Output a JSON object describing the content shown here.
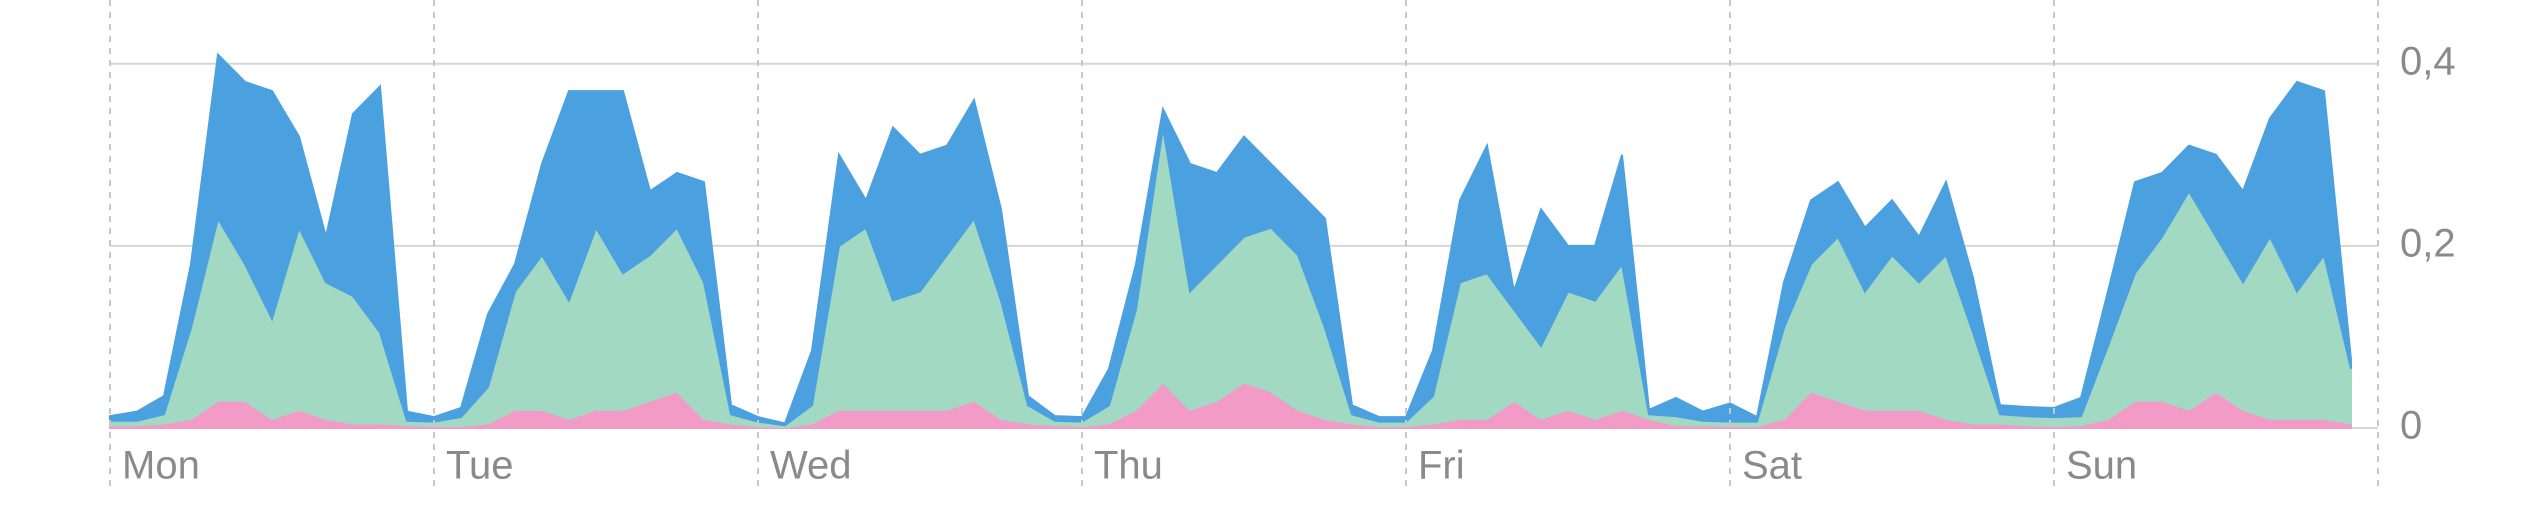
{
  "chart_data": {
    "type": "stacked-area",
    "x": [
      0,
      2,
      4,
      6,
      8,
      10,
      12,
      14,
      16,
      18,
      20,
      22,
      24,
      26,
      28,
      30,
      32,
      34,
      36,
      38,
      40,
      42,
      44,
      46,
      48,
      50,
      52,
      54,
      56,
      58,
      60,
      62,
      64,
      66,
      68,
      70,
      72,
      74,
      76,
      78,
      80,
      82,
      84,
      86,
      88,
      90,
      92,
      94,
      96,
      98,
      100,
      102,
      104,
      106,
      108,
      110,
      112,
      114,
      116,
      118,
      120,
      122,
      124,
      126,
      128,
      130,
      132,
      134,
      136,
      138,
      140,
      142,
      144,
      146,
      148,
      150,
      152,
      154,
      156,
      158,
      160,
      162,
      164,
      166
    ],
    "xlim": [
      0,
      168
    ],
    "xticks": [
      {
        "value": 0,
        "label": "Mon"
      },
      {
        "value": 24,
        "label": "Tue"
      },
      {
        "value": 48,
        "label": "Wed"
      },
      {
        "value": 72,
        "label": "Thu"
      },
      {
        "value": 96,
        "label": "Fri"
      },
      {
        "value": 120,
        "label": "Sat"
      },
      {
        "value": 144,
        "label": "Sun"
      }
    ],
    "ylim": [
      0,
      0.47
    ],
    "yticks": [
      0,
      {
        "value": 0.2,
        "label": "0,2"
      },
      {
        "value": 0.4,
        "label": "0,4"
      }
    ],
    "grid": true,
    "series": [
      {
        "color": "#f29bc7",
        "values": [
          0.003,
          0.003,
          0.005,
          0.01,
          0.03,
          0.03,
          0.01,
          0.02,
          0.01,
          0.005,
          0.005,
          0.003,
          0.002,
          0.002,
          0.005,
          0.02,
          0.02,
          0.01,
          0.02,
          0.02,
          0.03,
          0.04,
          0.01,
          0.005,
          0.002,
          0.001,
          0.005,
          0.02,
          0.02,
          0.02,
          0.02,
          0.02,
          0.03,
          0.01,
          0.005,
          0.003,
          0.002,
          0.005,
          0.02,
          0.05,
          0.02,
          0.03,
          0.05,
          0.04,
          0.02,
          0.01,
          0.005,
          0.002,
          0.002,
          0.005,
          0.01,
          0.01,
          0.03,
          0.01,
          0.02,
          0.01,
          0.02,
          0.01,
          0.003,
          0.003,
          0.002,
          0.002,
          0.01,
          0.04,
          0.03,
          0.02,
          0.02,
          0.02,
          0.01,
          0.005,
          0.005,
          0.003,
          0.002,
          0.003,
          0.01,
          0.03,
          0.03,
          0.02,
          0.04,
          0.02,
          0.01,
          0.01,
          0.01,
          0.005
        ]
      },
      {
        "color": "#a2d9c2",
        "values": [
          0.005,
          0.005,
          0.01,
          0.1,
          0.2,
          0.15,
          0.11,
          0.2,
          0.15,
          0.14,
          0.1,
          0.005,
          0.005,
          0.01,
          0.04,
          0.13,
          0.17,
          0.13,
          0.2,
          0.15,
          0.16,
          0.18,
          0.15,
          0.01,
          0.005,
          0.002,
          0.02,
          0.18,
          0.2,
          0.12,
          0.13,
          0.17,
          0.2,
          0.13,
          0.02,
          0.005,
          0.005,
          0.02,
          0.11,
          0.28,
          0.13,
          0.15,
          0.16,
          0.18,
          0.17,
          0.1,
          0.01,
          0.005,
          0.005,
          0.03,
          0.15,
          0.16,
          0.1,
          0.08,
          0.13,
          0.13,
          0.16,
          0.005,
          0.01,
          0.005,
          0.005,
          0.005,
          0.1,
          0.14,
          0.18,
          0.13,
          0.17,
          0.14,
          0.18,
          0.1,
          0.01,
          0.01,
          0.01,
          0.01,
          0.08,
          0.14,
          0.18,
          0.24,
          0.17,
          0.14,
          0.2,
          0.14,
          0.18,
          0.06
        ]
      },
      {
        "color": "#4ba0e0",
        "values": [
          0.005,
          0.01,
          0.02,
          0.07,
          0.18,
          0.2,
          0.25,
          0.1,
          0.05,
          0.2,
          0.27,
          0.01,
          0.005,
          0.01,
          0.08,
          0.03,
          0.1,
          0.23,
          0.15,
          0.2,
          0.07,
          0.06,
          0.11,
          0.01,
          0.005,
          0.002,
          0.06,
          0.1,
          0.03,
          0.19,
          0.15,
          0.12,
          0.13,
          0.1,
          0.01,
          0.005,
          0.005,
          0.04,
          0.05,
          0.02,
          0.14,
          0.1,
          0.11,
          0.07,
          0.07,
          0.12,
          0.01,
          0.005,
          0.005,
          0.05,
          0.09,
          0.14,
          0.02,
          0.15,
          0.05,
          0.06,
          0.12,
          0.005,
          0.02,
          0.01,
          0.02,
          0.005,
          0.05,
          0.07,
          0.06,
          0.07,
          0.06,
          0.05,
          0.08,
          0.06,
          0.01,
          0.01,
          0.01,
          0.02,
          0.06,
          0.1,
          0.07,
          0.05,
          0.09,
          0.1,
          0.13,
          0.23,
          0.18,
          0.01
        ]
      }
    ]
  }
}
